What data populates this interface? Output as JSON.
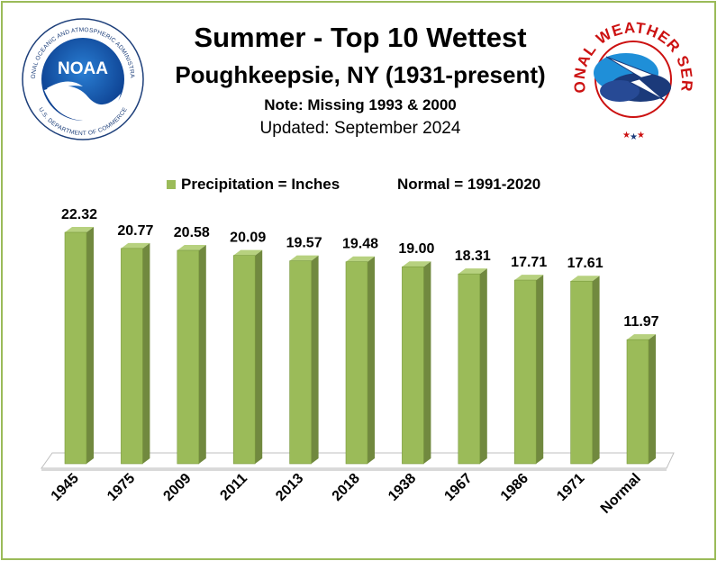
{
  "header": {
    "title": "Summer - Top 10 Wettest",
    "subtitle": "Poughkeepsie, NY (1931-present)",
    "note": "Note: Missing 1993 & 2000",
    "updated": "Updated:  September 2024"
  },
  "logos": {
    "noara_name": "NOAA",
    "noaa_ring_text": "NATIONAL OCEANIC AND ATMOSPHERIC ADMINISTRATION",
    "noaa_ring_bottom": "U.S. DEPARTMENT OF COMMERCE",
    "nws_ring_text": "NATIONAL WEATHER SERVICE"
  },
  "legend": {
    "series_label": "Precipitation = Inches",
    "normal_label": "Normal = 1991-2020"
  },
  "colors": {
    "bar_front": "#9bbb59",
    "bar_side": "#71893f",
    "bar_top": "#b7d17f",
    "frame": "#9bbb59"
  },
  "chart_data": {
    "type": "bar",
    "title": "Summer - Top 10 Wettest",
    "categories": [
      "1945",
      "1975",
      "2009",
      "2011",
      "2013",
      "2018",
      "1938",
      "1967",
      "1986",
      "1971",
      "Normal"
    ],
    "series": [
      {
        "name": "Precipitation = Inches",
        "values": [
          22.32,
          20.77,
          20.58,
          20.09,
          19.57,
          19.48,
          19.0,
          18.31,
          17.71,
          17.61,
          11.97
        ]
      }
    ],
    "labels": [
      "22.32",
      "20.77",
      "20.58",
      "20.09",
      "19.57",
      "19.48",
      "19.00",
      "18.31",
      "17.71",
      "17.61",
      "11.97"
    ],
    "ylim": [
      0,
      24
    ],
    "grid": false,
    "legend_position": "top"
  }
}
